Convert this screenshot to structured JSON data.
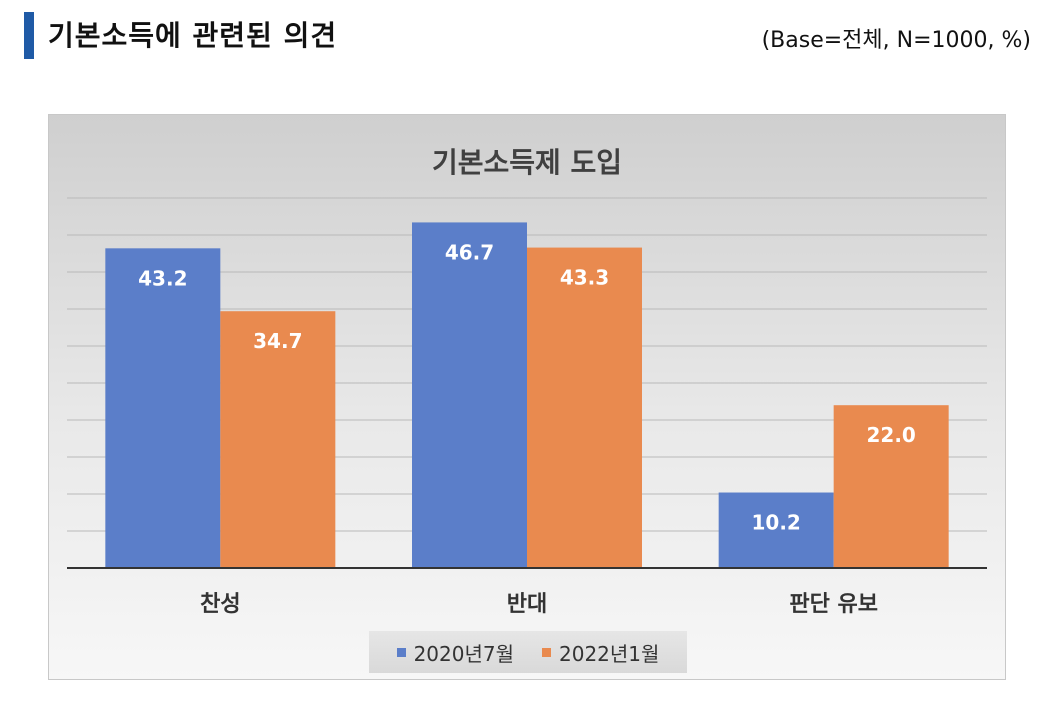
{
  "header": {
    "title": "기본소득에 관련된 의견",
    "base_note": "(Base=전체,  N=1000,  %)"
  },
  "chart_data": {
    "type": "bar",
    "title": "기본소득제 도입",
    "categories": [
      "찬성",
      "반대",
      "판단 유보"
    ],
    "series": [
      {
        "name": "2020년7월",
        "values": [
          43.2,
          46.7,
          10.2
        ],
        "color": "#5b7ec9"
      },
      {
        "name": "2022년1월",
        "values": [
          34.7,
          43.3,
          22.0
        ],
        "color": "#e98a4f"
      }
    ],
    "ylim": [
      0,
      50
    ],
    "grid": true,
    "legend_position": "bottom"
  }
}
